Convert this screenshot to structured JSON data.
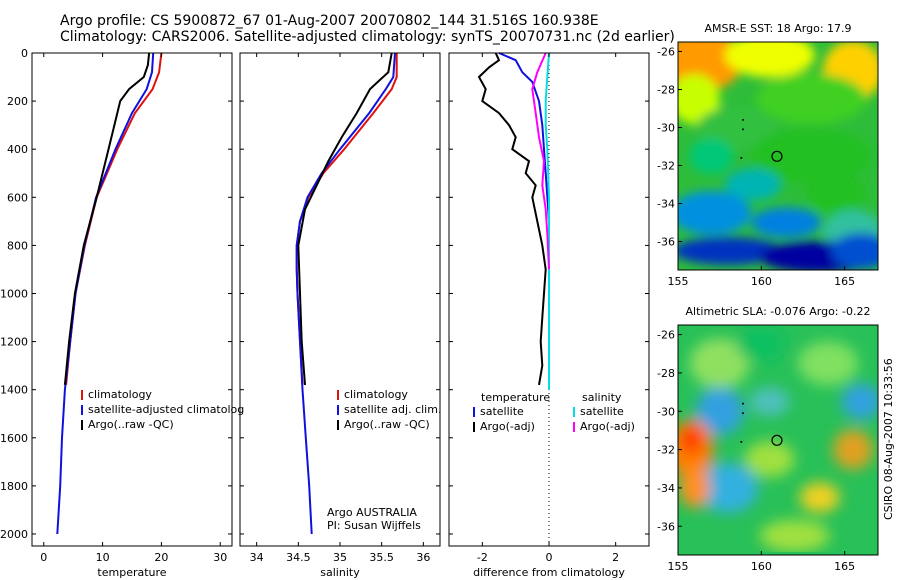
{
  "header": {
    "line1": "Argo profile: CS 5900872_67 01-Aug-2007 20070802_144 31.516S 160.938E",
    "line2": "Climatology: CARS2006. Satellite-adjusted climatology: synTS_20070731.nc (2d earlier)"
  },
  "side_stamp": "CSIRO 08-Aug-2007 10:33:56",
  "colors": {
    "climatology": "#e01010",
    "satellite": "#1010e0",
    "argo": "#000000",
    "sat_salinity": "#00e0e0",
    "argo_salinity_adj": "#ff00ff"
  },
  "chart_data": [
    {
      "type": "line",
      "name": "temperature-profile",
      "xlabel": "temperature",
      "ylabel": "",
      "xlim": [
        -2,
        32
      ],
      "ylim": [
        2050,
        0
      ],
      "xticks": [
        0,
        10,
        20,
        30
      ],
      "yticks": [
        0,
        200,
        400,
        600,
        800,
        1000,
        1200,
        1400,
        1600,
        1800,
        2000
      ],
      "legend": {
        "position": "bottom-right",
        "entries": [
          "climatology",
          "satellite-adjusted climatolog",
          "Argo(..raw -QC)"
        ]
      },
      "series": [
        {
          "name": "climatology",
          "color": "climatology",
          "depth": [
            0,
            80,
            150,
            250,
            400,
            600,
            800,
            1000,
            1200,
            1380
          ],
          "values": [
            20.0,
            19.6,
            18.5,
            15.5,
            12.5,
            9.0,
            7.0,
            5.4,
            4.5,
            3.8
          ]
        },
        {
          "name": "satellite-adjusted climatolog",
          "color": "satellite",
          "depth": [
            0,
            80,
            150,
            250,
            400,
            600,
            800,
            1000,
            1200,
            1400,
            1600,
            1800,
            2000
          ],
          "values": [
            18.6,
            18.4,
            17.5,
            15.0,
            12.2,
            8.9,
            6.9,
            5.4,
            4.5,
            3.6,
            3.1,
            2.8,
            2.3
          ]
        },
        {
          "name": "Argo(..raw -QC)",
          "color": "argo",
          "depth": [
            0,
            50,
            100,
            150,
            200,
            300,
            400,
            500,
            600,
            800,
            1000,
            1200,
            1380
          ],
          "values": [
            17.9,
            17.7,
            17.0,
            14.5,
            13.0,
            12.0,
            11.0,
            10.0,
            9.0,
            6.8,
            5.3,
            4.3,
            3.6
          ]
        }
      ]
    },
    {
      "type": "line",
      "name": "salinity-profile",
      "xlabel": "salinity",
      "ylabel": "",
      "xlim": [
        33.8,
        36.2
      ],
      "ylim": [
        2050,
        0
      ],
      "xticks": [
        34,
        34.5,
        35,
        35.5,
        36
      ],
      "legend": {
        "position": "bottom-right",
        "entries": [
          "climatology",
          "satellite adj. clim.",
          "Argo(..raw -QC)"
        ]
      },
      "annotation": [
        "Argo AUSTRALIA",
        "PI: Susan Wijffels"
      ],
      "series": [
        {
          "name": "climatology",
          "color": "climatology",
          "depth": [
            0,
            100,
            150,
            250,
            400,
            500,
            600,
            700,
            800,
            900,
            1000,
            1200,
            1380
          ],
          "values": [
            35.68,
            35.68,
            35.62,
            35.4,
            35.05,
            34.8,
            34.62,
            34.52,
            34.48,
            34.48,
            34.49,
            34.52,
            34.55
          ]
        },
        {
          "name": "satellite adj. clim.",
          "color": "satellite",
          "depth": [
            0,
            100,
            150,
            250,
            400,
            500,
            600,
            700,
            800,
            900,
            1000,
            1200,
            1400,
            1600,
            1800,
            2000
          ],
          "values": [
            35.66,
            35.64,
            35.55,
            35.35,
            35.0,
            34.78,
            34.61,
            34.52,
            34.48,
            34.48,
            34.49,
            34.52,
            34.55,
            34.59,
            34.63,
            34.66
          ]
        },
        {
          "name": "Argo(..raw -QC)",
          "color": "argo",
          "depth": [
            0,
            80,
            150,
            250,
            350,
            450,
            550,
            650,
            800,
            1000,
            1200,
            1380
          ],
          "values": [
            35.62,
            35.58,
            35.36,
            35.2,
            35.02,
            34.86,
            34.72,
            34.58,
            34.5,
            34.52,
            34.54,
            34.58
          ]
        }
      ]
    },
    {
      "type": "line",
      "name": "difference-profile",
      "xlabel": "difference from climatology",
      "ylabel": "",
      "xlim": [
        -3,
        3
      ],
      "ylim": [
        2050,
        0
      ],
      "xticks": [
        -2,
        0,
        2
      ],
      "legend": {
        "position": "center",
        "entries": [
          "temperature",
          "satellite",
          "Argo(-adj)",
          "salinity",
          "satellite",
          "Argo(-adj)"
        ]
      },
      "series": [
        {
          "name": "temperature satellite",
          "color": "satellite",
          "depth": [
            0,
            30,
            80,
            120,
            200,
            300,
            500,
            700,
            1000,
            1380
          ],
          "values": [
            -1.5,
            -1.0,
            -0.8,
            -0.5,
            -0.3,
            -0.2,
            -0.1,
            0.0,
            0.0,
            0.0
          ]
        },
        {
          "name": "temperature Argo(-adj)",
          "color": "argo",
          "depth": [
            0,
            30,
            60,
            100,
            150,
            200,
            250,
            300,
            350,
            400,
            450,
            500,
            550,
            600,
            700,
            800,
            900,
            1000,
            1100,
            1200,
            1300,
            1380
          ],
          "values": [
            -1.6,
            -1.5,
            -1.8,
            -2.1,
            -1.9,
            -2.0,
            -1.5,
            -1.2,
            -1.0,
            -1.1,
            -0.6,
            -0.7,
            -0.4,
            -0.5,
            -0.35,
            -0.2,
            -0.1,
            -0.15,
            -0.2,
            -0.25,
            -0.2,
            -0.3
          ]
        },
        {
          "name": "salinity satellite",
          "color": "sat_salinity",
          "depth": [
            0,
            100,
            200,
            300,
            400,
            600,
            800,
            1000,
            1200,
            1400
          ],
          "values": [
            0.0,
            -0.05,
            -0.1,
            -0.1,
            -0.05,
            0.0,
            0.0,
            0.0,
            0.0,
            0.0
          ]
        },
        {
          "name": "salinity Argo(-adj)",
          "color": "argo_salinity_adj",
          "depth": [
            0,
            80,
            150,
            250,
            350,
            450,
            550,
            650,
            750,
            900
          ],
          "values": [
            -0.1,
            -0.35,
            -0.5,
            -0.4,
            -0.3,
            -0.15,
            -0.2,
            -0.1,
            -0.05,
            0.0
          ]
        }
      ]
    },
    {
      "type": "heatmap",
      "name": "sst-map",
      "title": "AMSR-E SST: 18 Argo: 17.9",
      "xlim": [
        155,
        167
      ],
      "ylim": [
        -37.5,
        -25.5
      ],
      "xticks": [
        155,
        160,
        165
      ],
      "yticks": [
        -26,
        -28,
        -30,
        -32,
        -34,
        -36
      ],
      "float_position": [
        160.938,
        -31.516
      ]
    },
    {
      "type": "heatmap",
      "name": "sla-map",
      "title": "Altimetric SLA: -0.076 Argo: -0.22",
      "xlim": [
        155,
        167
      ],
      "ylim": [
        -37.5,
        -25.5
      ],
      "xticks": [
        155,
        160,
        165
      ],
      "yticks": [
        -26,
        -28,
        -30,
        -32,
        -34,
        -36
      ],
      "float_position": [
        160.938,
        -31.516
      ]
    }
  ]
}
